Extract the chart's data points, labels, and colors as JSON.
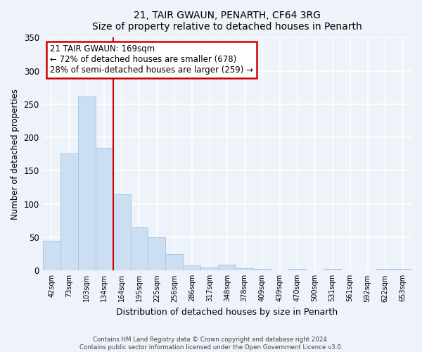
{
  "title": "21, TAIR GWAUN, PENARTH, CF64 3RG",
  "subtitle": "Size of property relative to detached houses in Penarth",
  "xlabel": "Distribution of detached houses by size in Penarth",
  "ylabel": "Number of detached properties",
  "bar_labels": [
    "42sqm",
    "73sqm",
    "103sqm",
    "134sqm",
    "164sqm",
    "195sqm",
    "225sqm",
    "256sqm",
    "286sqm",
    "317sqm",
    "348sqm",
    "378sqm",
    "409sqm",
    "439sqm",
    "470sqm",
    "500sqm",
    "531sqm",
    "561sqm",
    "592sqm",
    "622sqm",
    "653sqm"
  ],
  "bar_values": [
    45,
    176,
    261,
    184,
    114,
    65,
    50,
    25,
    8,
    5,
    9,
    4,
    2,
    0,
    2,
    0,
    2,
    0,
    0,
    2,
    2
  ],
  "bar_color": "#ccdff2",
  "bar_edge_color": "#a8c8e8",
  "vline_x_index": 4,
  "vline_color": "#cc0000",
  "annotation_title": "21 TAIR GWAUN: 169sqm",
  "annotation_line1": "← 72% of detached houses are smaller (678)",
  "annotation_line2": "28% of semi-detached houses are larger (259) →",
  "annotation_box_color": "#ffffff",
  "annotation_box_edge": "#cc0000",
  "ylim": [
    0,
    350
  ],
  "yticks": [
    0,
    50,
    100,
    150,
    200,
    250,
    300,
    350
  ],
  "footer_line1": "Contains HM Land Registry data © Crown copyright and database right 2024.",
  "footer_line2": "Contains public sector information licensed under the Open Government Licence v3.0.",
  "bg_color": "#eef2f9",
  "grid_color": "#ffffff",
  "title_fontsize": 11,
  "subtitle_fontsize": 9
}
